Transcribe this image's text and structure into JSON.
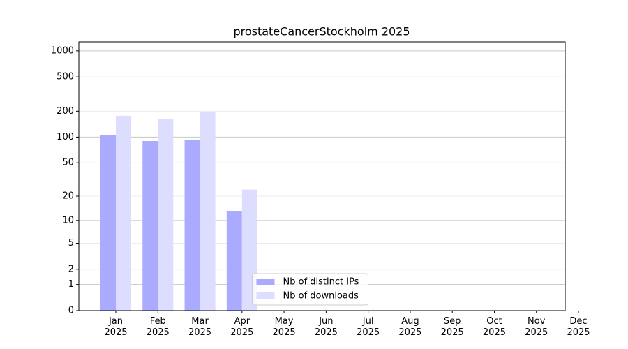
{
  "chart_data": {
    "type": "bar",
    "title": "prostateCancerStockholm 2025",
    "categories": [
      "Jan\n2025",
      "Feb\n2025",
      "Mar\n2025",
      "Apr\n2025",
      "May\n2025",
      "Jun\n2025",
      "Jul\n2025",
      "Aug\n2025",
      "Sep\n2025",
      "Oct\n2025",
      "Nov\n2025",
      "Dec\n2025"
    ],
    "series": [
      {
        "name": "Nb of distinct IPs",
        "color": "#aaaaff",
        "values": [
          105,
          90,
          92,
          13,
          null,
          null,
          null,
          null,
          null,
          null,
          null,
          null
        ]
      },
      {
        "name": "Nb of downloads",
        "color": "#ddddff",
        "values": [
          177,
          161,
          194,
          24,
          null,
          null,
          null,
          null,
          null,
          null,
          null,
          null
        ]
      }
    ],
    "yscale": "log1p",
    "ylim": [
      0,
      1270
    ],
    "yticks": [
      0,
      1,
      2,
      5,
      10,
      20,
      50,
      100,
      200,
      500,
      1000
    ],
    "grid": true,
    "legend": "lower center"
  }
}
